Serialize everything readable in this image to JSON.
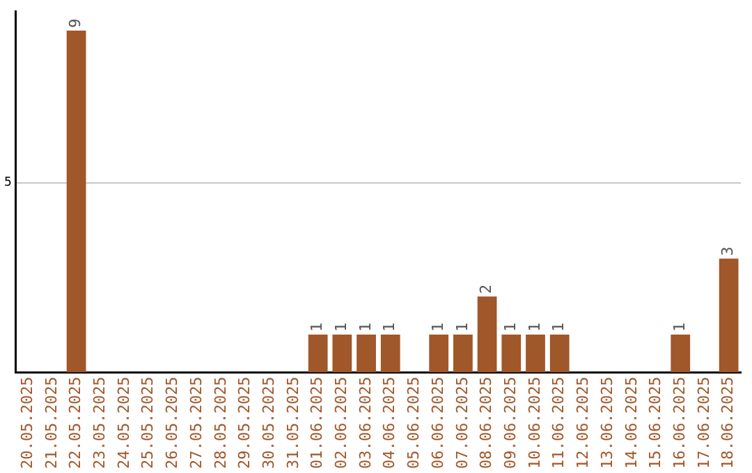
{
  "chart_data": {
    "type": "bar",
    "categories": [
      "20.05.2025",
      "21.05.2025",
      "22.05.2025",
      "23.05.2025",
      "24.05.2025",
      "25.05.2025",
      "26.05.2025",
      "27.05.2025",
      "28.05.2025",
      "29.05.2025",
      "30.05.2025",
      "31.05.2025",
      "01.06.2025",
      "02.06.2025",
      "03.06.2025",
      "04.06.2025",
      "05.06.2025",
      "06.06.2025",
      "07.06.2025",
      "08.06.2025",
      "09.06.2025",
      "10.06.2025",
      "11.06.2025",
      "12.06.2025",
      "13.06.2025",
      "14.06.2025",
      "15.06.2025",
      "16.06.2025",
      "17.06.2025",
      "18.06.2025"
    ],
    "values": [
      0,
      0,
      9,
      0,
      0,
      0,
      0,
      0,
      0,
      0,
      0,
      0,
      1,
      1,
      1,
      1,
      0,
      1,
      1,
      2,
      1,
      1,
      1,
      0,
      0,
      0,
      0,
      1,
      0,
      3
    ],
    "value_labels": [
      null,
      null,
      "9",
      null,
      null,
      null,
      null,
      null,
      null,
      null,
      null,
      null,
      "1",
      "1",
      "1",
      "1",
      null,
      "1",
      "1",
      "2",
      "1",
      "1",
      "1",
      null,
      null,
      null,
      null,
      "1",
      null,
      "3"
    ],
    "color": "#a0572a",
    "ylim": [
      0,
      9.5
    ],
    "yticks": [
      5
    ],
    "grid": "y",
    "legend": false
  }
}
